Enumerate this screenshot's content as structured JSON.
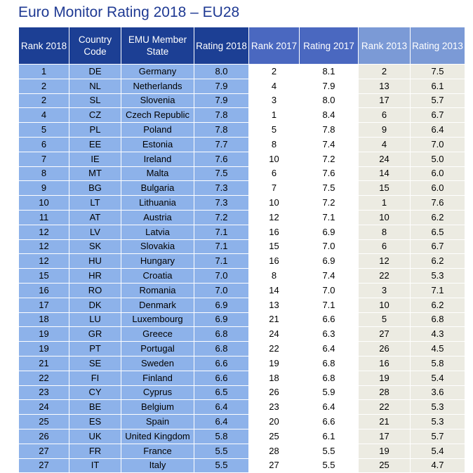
{
  "title": "Euro Monitor Rating 2018 – EU28",
  "headers": [
    "Rank 2018",
    "Country Code",
    "EMU Member State",
    "Rating 2018",
    "Rank 2017",
    "Rating 2017",
    "Rank 2013",
    "Rating 2013"
  ],
  "colors": {
    "group2018_header": "#1c3f94",
    "group2017_header": "#4a68c0",
    "group2013_header": "#7b9ad6",
    "group2018_body": "#8db2ea",
    "group2017_body": "#ffffff",
    "group2013_body": "#ecebe2",
    "title": "#1f3a93"
  },
  "rows": [
    [
      "1",
      "DE",
      "Germany",
      "8.0",
      "2",
      "8.1",
      "2",
      "7.5"
    ],
    [
      "2",
      "NL",
      "Netherlands",
      "7.9",
      "4",
      "7.9",
      "13",
      "6.1"
    ],
    [
      "2",
      "SL",
      "Slovenia",
      "7.9",
      "3",
      "8.0",
      "17",
      "5.7"
    ],
    [
      "4",
      "CZ",
      "Czech Republic",
      "7.8",
      "1",
      "8.4",
      "6",
      "6.7"
    ],
    [
      "5",
      "PL",
      "Poland",
      "7.8",
      "5",
      "7.8",
      "9",
      "6.4"
    ],
    [
      "6",
      "EE",
      "Estonia",
      "7.7",
      "8",
      "7.4",
      "4",
      "7.0"
    ],
    [
      "7",
      "IE",
      "Ireland",
      "7.6",
      "10",
      "7.2",
      "24",
      "5.0"
    ],
    [
      "8",
      "MT",
      "Malta",
      "7.5",
      "6",
      "7.6",
      "14",
      "6.0"
    ],
    [
      "9",
      "BG",
      "Bulgaria",
      "7.3",
      "7",
      "7.5",
      "15",
      "6.0"
    ],
    [
      "10",
      "LT",
      "Lithuania",
      "7.3",
      "10",
      "7.2",
      "1",
      "7.6"
    ],
    [
      "11",
      "AT",
      "Austria",
      "7.2",
      "12",
      "7.1",
      "10",
      "6.2"
    ],
    [
      "12",
      "LV",
      "Latvia",
      "7.1",
      "16",
      "6.9",
      "8",
      "6.5"
    ],
    [
      "12",
      "SK",
      "Slovakia",
      "7.1",
      "15",
      "7.0",
      "6",
      "6.7"
    ],
    [
      "12",
      "HU",
      "Hungary",
      "7.1",
      "16",
      "6.9",
      "12",
      "6.2"
    ],
    [
      "15",
      "HR",
      "Croatia",
      "7.0",
      "8",
      "7.4",
      "22",
      "5.3"
    ],
    [
      "16",
      "RO",
      "Romania",
      "7.0",
      "14",
      "7.0",
      "3",
      "7.1"
    ],
    [
      "17",
      "DK",
      "Denmark",
      "6.9",
      "13",
      "7.1",
      "10",
      "6.2"
    ],
    [
      "18",
      "LU",
      "Luxembourg",
      "6.9",
      "21",
      "6.6",
      "5",
      "6.8"
    ],
    [
      "19",
      "GR",
      "Greece",
      "6.8",
      "24",
      "6.3",
      "27",
      "4.3"
    ],
    [
      "19",
      "PT",
      "Portugal",
      "6.8",
      "22",
      "6.4",
      "26",
      "4.5"
    ],
    [
      "21",
      "SE",
      "Sweden",
      "6.6",
      "19",
      "6.8",
      "16",
      "5.8"
    ],
    [
      "22",
      "FI",
      "Finland",
      "6.6",
      "18",
      "6.8",
      "19",
      "5.4"
    ],
    [
      "23",
      "CY",
      "Cyprus",
      "6.5",
      "26",
      "5.9",
      "28",
      "3.6"
    ],
    [
      "24",
      "BE",
      "Belgium",
      "6.4",
      "23",
      "6.4",
      "22",
      "5.3"
    ],
    [
      "25",
      "ES",
      "Spain",
      "6.4",
      "20",
      "6.6",
      "21",
      "5.3"
    ],
    [
      "26",
      "UK",
      "United Kingdom",
      "5.8",
      "25",
      "6.1",
      "17",
      "5.7"
    ],
    [
      "27",
      "FR",
      "France",
      "5.5",
      "28",
      "5.5",
      "19",
      "5.4"
    ],
    [
      "27",
      "IT",
      "Italy",
      "5.5",
      "27",
      "5.5",
      "25",
      "4.7"
    ]
  ]
}
